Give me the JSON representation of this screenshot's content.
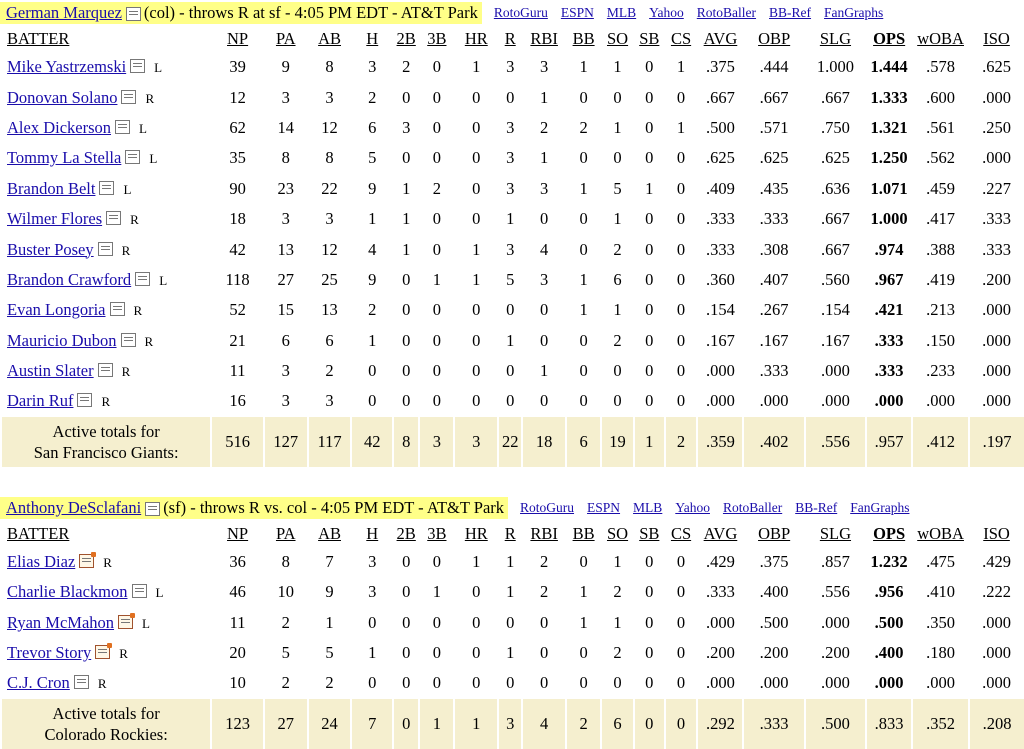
{
  "stat_columns": [
    "NP",
    "PA",
    "AB",
    "H",
    "2B",
    "3B",
    "HR",
    "R",
    "RBI",
    "BB",
    "SO",
    "SB",
    "CS",
    "AVG",
    "OBP",
    "SLG",
    "OPS",
    "wOBA",
    "ISO"
  ],
  "batter_header": "BATTER",
  "sections": [
    {
      "pitcher": "German Marquez",
      "matchup": "(col) - throws R at sf - 4:05 PM EDT - AT&T Park",
      "links": [
        "RotoGuru",
        "ESPN",
        "MLB",
        "Yahoo",
        "RotoBaller",
        "BB-Ref",
        "FanGraphs"
      ],
      "pitcher_note_icon": "note-icon",
      "rows": [
        {
          "name": "Mike Yastrzemski",
          "hand": "L",
          "icon": "note-icon",
          "stats": [
            "39",
            "9",
            "8",
            "3",
            "2",
            "0",
            "1",
            "3",
            "3",
            "1",
            "1",
            "0",
            "1",
            ".375",
            ".444",
            "1.000",
            "1.444",
            ".578",
            ".625"
          ]
        },
        {
          "name": "Donovan Solano",
          "hand": "R",
          "icon": "note-icon",
          "stats": [
            "12",
            "3",
            "3",
            "2",
            "0",
            "0",
            "0",
            "0",
            "1",
            "0",
            "0",
            "0",
            "0",
            ".667",
            ".667",
            ".667",
            "1.333",
            ".600",
            ".000"
          ]
        },
        {
          "name": "Alex Dickerson",
          "hand": "L",
          "icon": "note-icon",
          "stats": [
            "62",
            "14",
            "12",
            "6",
            "3",
            "0",
            "0",
            "3",
            "2",
            "2",
            "1",
            "0",
            "1",
            ".500",
            ".571",
            ".750",
            "1.321",
            ".561",
            ".250"
          ]
        },
        {
          "name": "Tommy La Stella",
          "hand": "L",
          "icon": "note-icon",
          "stats": [
            "35",
            "8",
            "8",
            "5",
            "0",
            "0",
            "0",
            "3",
            "1",
            "0",
            "0",
            "0",
            "0",
            ".625",
            ".625",
            ".625",
            "1.250",
            ".562",
            ".000"
          ]
        },
        {
          "name": "Brandon Belt",
          "hand": "L",
          "icon": "note-icon",
          "stats": [
            "90",
            "23",
            "22",
            "9",
            "1",
            "2",
            "0",
            "3",
            "3",
            "1",
            "5",
            "1",
            "0",
            ".409",
            ".435",
            ".636",
            "1.071",
            ".459",
            ".227"
          ]
        },
        {
          "name": "Wilmer Flores",
          "hand": "R",
          "icon": "note-icon",
          "stats": [
            "18",
            "3",
            "3",
            "1",
            "1",
            "0",
            "0",
            "1",
            "0",
            "0",
            "1",
            "0",
            "0",
            ".333",
            ".333",
            ".667",
            "1.000",
            ".417",
            ".333"
          ]
        },
        {
          "name": "Buster Posey",
          "hand": "R",
          "icon": "note-icon",
          "stats": [
            "42",
            "13",
            "12",
            "4",
            "1",
            "0",
            "1",
            "3",
            "4",
            "0",
            "2",
            "0",
            "0",
            ".333",
            ".308",
            ".667",
            ".974",
            ".388",
            ".333"
          ]
        },
        {
          "name": "Brandon Crawford",
          "hand": "L",
          "icon": "note-icon",
          "stats": [
            "118",
            "27",
            "25",
            "9",
            "0",
            "1",
            "1",
            "5",
            "3",
            "1",
            "6",
            "0",
            "0",
            ".360",
            ".407",
            ".560",
            ".967",
            ".419",
            ".200"
          ]
        },
        {
          "name": "Evan Longoria",
          "hand": "R",
          "icon": "note-icon",
          "stats": [
            "52",
            "15",
            "13",
            "2",
            "0",
            "0",
            "0",
            "0",
            "0",
            "1",
            "1",
            "0",
            "0",
            ".154",
            ".267",
            ".154",
            ".421",
            ".213",
            ".000"
          ]
        },
        {
          "name": "Mauricio Dubon",
          "hand": "R",
          "icon": "note-icon",
          "stats": [
            "21",
            "6",
            "6",
            "1",
            "0",
            "0",
            "0",
            "1",
            "0",
            "0",
            "2",
            "0",
            "0",
            ".167",
            ".167",
            ".167",
            ".333",
            ".150",
            ".000"
          ]
        },
        {
          "name": "Austin Slater",
          "hand": "R",
          "icon": "note-icon",
          "stats": [
            "11",
            "3",
            "2",
            "0",
            "0",
            "0",
            "0",
            "0",
            "1",
            "0",
            "0",
            "0",
            "0",
            ".000",
            ".333",
            ".000",
            ".333",
            ".233",
            ".000"
          ]
        },
        {
          "name": "Darin Ruf",
          "hand": "R",
          "icon": "note-icon",
          "stats": [
            "16",
            "3",
            "3",
            "0",
            "0",
            "0",
            "0",
            "0",
            "0",
            "0",
            "0",
            "0",
            "0",
            ".000",
            ".000",
            ".000",
            ".000",
            ".000",
            ".000"
          ]
        }
      ],
      "totals_label_1": "Active totals for",
      "totals_label_2": "San Francisco Giants:",
      "totals": [
        "516",
        "127",
        "117",
        "42",
        "8",
        "3",
        "3",
        "22",
        "18",
        "6",
        "19",
        "1",
        "2",
        ".359",
        ".402",
        ".556",
        ".957",
        ".412",
        ".197"
      ]
    },
    {
      "pitcher": "Anthony DeSclafani",
      "matchup": "(sf) - throws R vs. col - 4:05 PM EDT - AT&T Park",
      "links": [
        "RotoGuru",
        "ESPN",
        "MLB",
        "Yahoo",
        "RotoBaller",
        "BB-Ref",
        "FanGraphs"
      ],
      "pitcher_note_icon": "note-icon",
      "rows": [
        {
          "name": "Elias Diaz",
          "hand": "R",
          "icon": "note-new-icon",
          "stats": [
            "36",
            "8",
            "7",
            "3",
            "0",
            "0",
            "1",
            "1",
            "2",
            "0",
            "1",
            "0",
            "0",
            ".429",
            ".375",
            ".857",
            "1.232",
            ".475",
            ".429"
          ]
        },
        {
          "name": "Charlie Blackmon",
          "hand": "L",
          "icon": "note-icon",
          "stats": [
            "46",
            "10",
            "9",
            "3",
            "0",
            "1",
            "0",
            "1",
            "2",
            "1",
            "2",
            "0",
            "0",
            ".333",
            ".400",
            ".556",
            ".956",
            ".410",
            ".222"
          ]
        },
        {
          "name": "Ryan McMahon",
          "hand": "L",
          "icon": "note-new-icon",
          "stats": [
            "11",
            "2",
            "1",
            "0",
            "0",
            "0",
            "0",
            "0",
            "0",
            "1",
            "1",
            "0",
            "0",
            ".000",
            ".500",
            ".000",
            ".500",
            ".350",
            ".000"
          ]
        },
        {
          "name": "Trevor Story",
          "hand": "R",
          "icon": "note-new-icon",
          "stats": [
            "20",
            "5",
            "5",
            "1",
            "0",
            "0",
            "0",
            "1",
            "0",
            "0",
            "2",
            "0",
            "0",
            ".200",
            ".200",
            ".200",
            ".400",
            ".180",
            ".000"
          ]
        },
        {
          "name": "C.J. Cron",
          "hand": "R",
          "icon": "note-icon",
          "stats": [
            "10",
            "2",
            "2",
            "0",
            "0",
            "0",
            "0",
            "0",
            "0",
            "0",
            "0",
            "0",
            "0",
            ".000",
            ".000",
            ".000",
            ".000",
            ".000",
            ".000"
          ]
        }
      ],
      "totals_label_1": "Active totals for",
      "totals_label_2": "Colorado Rockies:",
      "totals": [
        "123",
        "27",
        "24",
        "7",
        "0",
        "1",
        "1",
        "3",
        "4",
        "2",
        "6",
        "0",
        "0",
        ".292",
        ".333",
        ".500",
        ".833",
        ".352",
        ".208"
      ]
    }
  ]
}
